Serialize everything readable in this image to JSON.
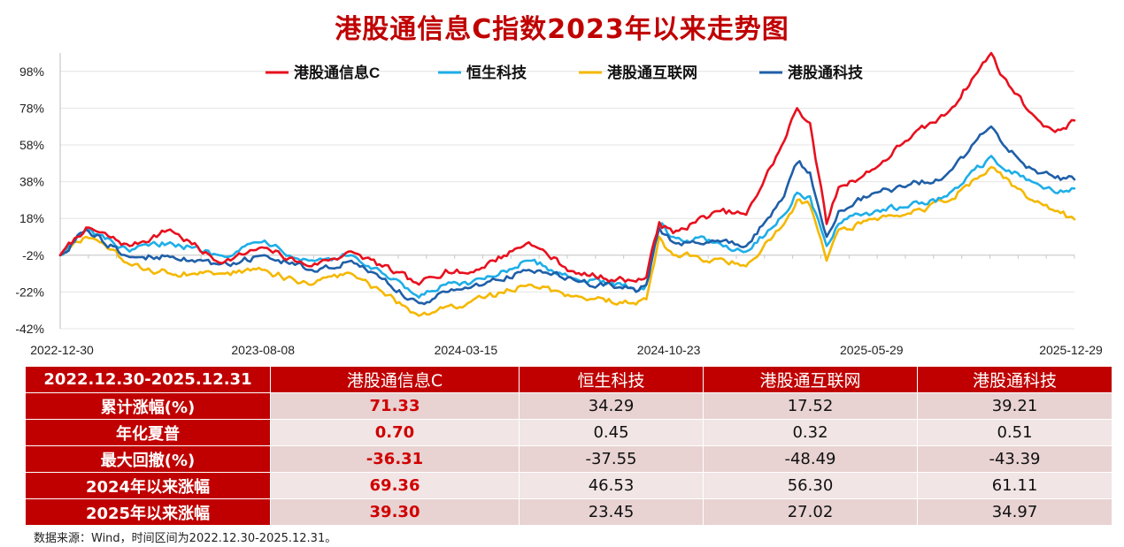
{
  "title": "港股通信息C指数2023年以来走势图",
  "chart_data": {
    "type": "line",
    "title": "港股通信息C指数2023年以来走势图",
    "x_ticks": [
      "2022-12-30",
      "2023-08-08",
      "2024-03-15",
      "2024-10-23",
      "2025-05-29",
      "2025-12-29"
    ],
    "y_ticks": [
      "98%",
      "78%",
      "58%",
      "38%",
      "18%",
      "-2%",
      "-22%",
      "-42%"
    ],
    "ylim": [
      -42,
      108
    ],
    "xlim": [
      "2022-12-30",
      "2025-12-31"
    ],
    "grid": true,
    "legend_position": "top",
    "series": [
      {
        "name": "港股通信息C",
        "color": "#e8101e",
        "keypoints": [
          [
            "2022-12-30",
            -2
          ],
          [
            "2023-01-27",
            13
          ],
          [
            "2023-03-15",
            3
          ],
          [
            "2023-04-28",
            12
          ],
          [
            "2023-06-20",
            -6
          ],
          [
            "2023-08-08",
            2
          ],
          [
            "2023-09-25",
            -8
          ],
          [
            "2023-11-10",
            0
          ],
          [
            "2024-01-22",
            -18
          ],
          [
            "2024-02-20",
            -10
          ],
          [
            "2024-03-15",
            -12
          ],
          [
            "2024-05-20",
            5
          ],
          [
            "2024-07-10",
            -12
          ],
          [
            "2024-09-10",
            -16
          ],
          [
            "2024-09-24",
            -14
          ],
          [
            "2024-10-08",
            16
          ],
          [
            "2024-10-23",
            10
          ],
          [
            "2024-12-10",
            22
          ],
          [
            "2025-01-10",
            20
          ],
          [
            "2025-02-20",
            60
          ],
          [
            "2025-03-06",
            78
          ],
          [
            "2025-03-20",
            70
          ],
          [
            "2025-04-07",
            15
          ],
          [
            "2025-04-20",
            35
          ],
          [
            "2025-05-29",
            45
          ],
          [
            "2025-07-01",
            60
          ],
          [
            "2025-08-15",
            75
          ],
          [
            "2025-10-02",
            108
          ],
          [
            "2025-10-15",
            95
          ],
          [
            "2025-11-15",
            75
          ],
          [
            "2025-12-10",
            65
          ],
          [
            "2025-12-31",
            71.33
          ]
        ]
      },
      {
        "name": "恒生科技",
        "color": "#1eaee8",
        "keypoints": [
          [
            "2022-12-30",
            -2
          ],
          [
            "2023-01-27",
            12
          ],
          [
            "2023-03-15",
            0
          ],
          [
            "2023-04-28",
            5
          ],
          [
            "2023-06-20",
            -2
          ],
          [
            "2023-08-08",
            6
          ],
          [
            "2023-09-25",
            -5
          ],
          [
            "2023-11-10",
            -2
          ],
          [
            "2024-01-22",
            -25
          ],
          [
            "2024-02-20",
            -18
          ],
          [
            "2024-03-15",
            -18
          ],
          [
            "2024-05-20",
            -5
          ],
          [
            "2024-07-10",
            -15
          ],
          [
            "2024-09-10",
            -20
          ],
          [
            "2024-09-24",
            -18
          ],
          [
            "2024-10-08",
            15
          ],
          [
            "2024-10-23",
            8
          ],
          [
            "2024-12-10",
            5
          ],
          [
            "2025-01-10",
            0
          ],
          [
            "2025-02-20",
            20
          ],
          [
            "2025-03-06",
            32
          ],
          [
            "2025-03-20",
            30
          ],
          [
            "2025-04-07",
            3
          ],
          [
            "2025-04-20",
            15
          ],
          [
            "2025-05-29",
            22
          ],
          [
            "2025-07-01",
            24
          ],
          [
            "2025-08-15",
            30
          ],
          [
            "2025-10-02",
            52
          ],
          [
            "2025-10-15",
            45
          ],
          [
            "2025-11-15",
            38
          ],
          [
            "2025-12-10",
            32
          ],
          [
            "2025-12-31",
            34.29
          ]
        ]
      },
      {
        "name": "港股通互联网",
        "color": "#f5b800",
        "keypoints": [
          [
            "2022-12-30",
            -2
          ],
          [
            "2023-01-27",
            8
          ],
          [
            "2023-03-15",
            -7
          ],
          [
            "2023-04-28",
            -12
          ],
          [
            "2023-06-20",
            -12
          ],
          [
            "2023-08-08",
            -10
          ],
          [
            "2023-09-25",
            -18
          ],
          [
            "2023-11-10",
            -12
          ],
          [
            "2024-01-22",
            -35
          ],
          [
            "2024-02-20",
            -30
          ],
          [
            "2024-03-15",
            -28
          ],
          [
            "2024-05-20",
            -18
          ],
          [
            "2024-07-10",
            -24
          ],
          [
            "2024-09-10",
            -28
          ],
          [
            "2024-09-24",
            -26
          ],
          [
            "2024-10-08",
            8
          ],
          [
            "2024-10-23",
            -2
          ],
          [
            "2024-12-10",
            -4
          ],
          [
            "2025-01-10",
            -8
          ],
          [
            "2025-02-20",
            15
          ],
          [
            "2025-03-06",
            28
          ],
          [
            "2025-03-20",
            25
          ],
          [
            "2025-04-07",
            -5
          ],
          [
            "2025-04-20",
            12
          ],
          [
            "2025-05-29",
            18
          ],
          [
            "2025-07-01",
            20
          ],
          [
            "2025-08-15",
            27
          ],
          [
            "2025-10-02",
            46
          ],
          [
            "2025-10-15",
            40
          ],
          [
            "2025-11-15",
            28
          ],
          [
            "2025-12-10",
            22
          ],
          [
            "2025-12-31",
            17.52
          ]
        ]
      },
      {
        "name": "港股通科技",
        "color": "#1f5fa8",
        "keypoints": [
          [
            "2022-12-30",
            -2
          ],
          [
            "2023-01-27",
            12
          ],
          [
            "2023-03-15",
            -3
          ],
          [
            "2023-04-28",
            -3
          ],
          [
            "2023-06-20",
            -7
          ],
          [
            "2023-08-08",
            -2
          ],
          [
            "2023-09-25",
            -10
          ],
          [
            "2023-11-10",
            -5
          ],
          [
            "2024-01-22",
            -28
          ],
          [
            "2024-02-20",
            -22
          ],
          [
            "2024-03-15",
            -20
          ],
          [
            "2024-05-20",
            -10
          ],
          [
            "2024-07-10",
            -16
          ],
          [
            "2024-09-10",
            -20
          ],
          [
            "2024-09-24",
            -18
          ],
          [
            "2024-10-08",
            13
          ],
          [
            "2024-10-23",
            5
          ],
          [
            "2024-12-10",
            6
          ],
          [
            "2025-01-10",
            3
          ],
          [
            "2025-02-20",
            30
          ],
          [
            "2025-03-06",
            48
          ],
          [
            "2025-03-20",
            43
          ],
          [
            "2025-04-07",
            8
          ],
          [
            "2025-04-20",
            22
          ],
          [
            "2025-05-29",
            32
          ],
          [
            "2025-07-01",
            35
          ],
          [
            "2025-08-15",
            42
          ],
          [
            "2025-10-02",
            68
          ],
          [
            "2025-10-15",
            58
          ],
          [
            "2025-11-15",
            45
          ],
          [
            "2025-12-10",
            40
          ],
          [
            "2025-12-31",
            39.21
          ]
        ]
      }
    ]
  },
  "table": {
    "period": "2022.12.30-2025.12.31",
    "columns": [
      "港股通信息C",
      "恒生科技",
      "港股通互联网",
      "港股通科技"
    ],
    "rows": [
      {
        "label": "累计涨幅(%)",
        "values": [
          "71.33",
          "34.29",
          "17.52",
          "39.21"
        ]
      },
      {
        "label": "年化夏普",
        "values": [
          "0.70",
          "0.45",
          "0.32",
          "0.51"
        ]
      },
      {
        "label": "最大回撤(%)",
        "values": [
          "-36.31",
          "-37.55",
          "-48.49",
          "-43.39"
        ]
      },
      {
        "label": "2024年以来涨幅",
        "values": [
          "69.36",
          "46.53",
          "56.30",
          "61.11"
        ]
      },
      {
        "label": "2025年以来涨幅",
        "values": [
          "39.30",
          "23.45",
          "27.02",
          "34.97"
        ]
      }
    ]
  },
  "footnote": "数据来源：Wind，时间区间为2022.12.30-2025.12.31。"
}
